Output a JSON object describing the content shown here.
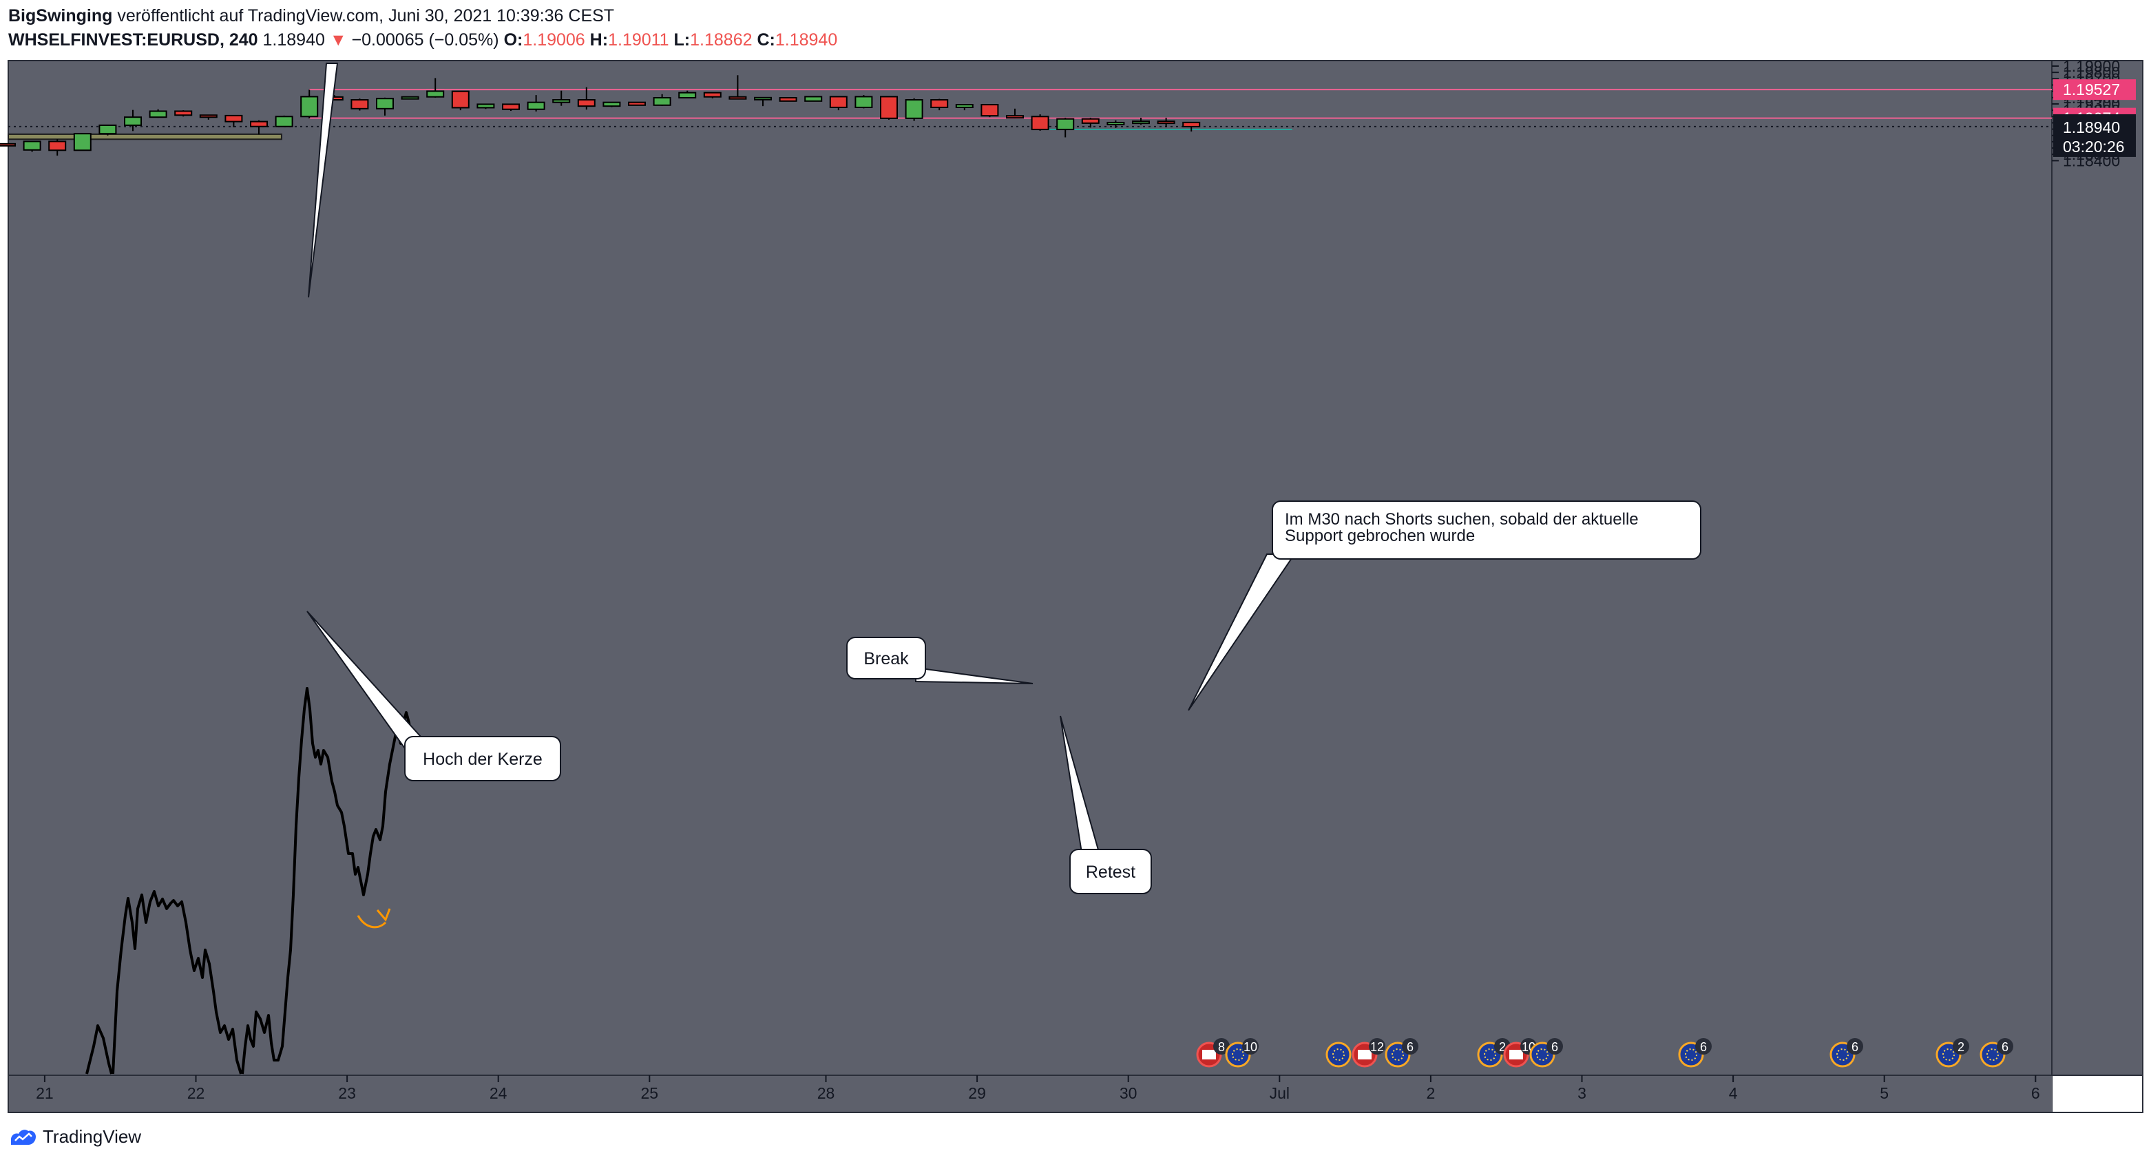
{
  "header": {
    "author": "BigSwinging",
    "published": "veröffentlicht auf TradingView.com, Juni 30, 2021 10:39:36 CEST",
    "symbol": "WHSELFINVEST:EURUSD, 240",
    "last": "1.18940",
    "change_arrow": "▼",
    "change": "−0.00065 (−0.05%)",
    "o_label": "O:",
    "o_value": "1.19006",
    "h_label": "H:",
    "h_value": "1.19011",
    "l_label": "L:",
    "l_value": "1.18862",
    "c_label": "C:",
    "c_value": "1.18940"
  },
  "brand": {
    "name": "TradingView",
    "icon": "tradingview-logo-icon"
  },
  "colors": {
    "background": "#5d606b",
    "bull": "#4caf50",
    "bear": "#e53935",
    "level_line": "#f06292",
    "level_label": "#ec407a",
    "last_label": "#131722",
    "retest_line": "#26a69a",
    "zone_fill": "#8a8a5e"
  },
  "chart_data": {
    "type": "candlestick",
    "timeframe": "240",
    "ylim": [
      1.1833,
      1.1999
    ],
    "y_ticks": [
      "1.18400",
      "1.18500",
      "1.18600",
      "1.18700",
      "1.18800",
      "1.18900",
      "1.19000",
      "1.19100",
      "1.19200",
      "1.19300",
      "1.19400",
      "1.19500",
      "1.19600",
      "1.19700",
      "1.19800",
      "1.19900"
    ],
    "x_ticks": [
      {
        "label": "21",
        "idx": 1.5
      },
      {
        "label": "22",
        "idx": 7.5
      },
      {
        "label": "23",
        "idx": 13.5
      },
      {
        "label": "24",
        "idx": 19.5
      },
      {
        "label": "25",
        "idx": 25.5
      },
      {
        "label": "28",
        "idx": 32.5
      },
      {
        "label": "29",
        "idx": 38.5
      },
      {
        "label": "30",
        "idx": 44.5
      },
      {
        "label": "Jul",
        "idx": 50.5
      },
      {
        "label": "2",
        "idx": 56.5
      },
      {
        "label": "3",
        "idx": 62.5
      },
      {
        "label": "4",
        "idx": 68.5
      },
      {
        "label": "5",
        "idx": 74.5
      },
      {
        "label": "6",
        "idx": 80.5
      }
    ],
    "candles": [
      {
        "o": 1.18668,
        "h": 1.18675,
        "l": 1.1864,
        "c": 1.1864
      },
      {
        "o": 1.1857,
        "h": 1.1871,
        "l": 1.1854,
        "c": 1.18705
      },
      {
        "o": 1.18705,
        "h": 1.1874,
        "l": 1.1848,
        "c": 1.18565
      },
      {
        "o": 1.18565,
        "h": 1.1884,
        "l": 1.1856,
        "c": 1.18828
      },
      {
        "o": 1.18828,
        "h": 1.1896,
        "l": 1.188,
        "c": 1.18962
      },
      {
        "o": 1.18962,
        "h": 1.19205,
        "l": 1.1887,
        "c": 1.1909
      },
      {
        "o": 1.1909,
        "h": 1.19215,
        "l": 1.1908,
        "c": 1.19185
      },
      {
        "o": 1.19185,
        "h": 1.192,
        "l": 1.191,
        "c": 1.19122
      },
      {
        "o": 1.19122,
        "h": 1.19125,
        "l": 1.1905,
        "c": 1.1912
      },
      {
        "o": 1.19115,
        "h": 1.1912,
        "l": 1.1893,
        "c": 1.1902
      },
      {
        "o": 1.1902,
        "h": 1.1904,
        "l": 1.18815,
        "c": 1.18942
      },
      {
        "o": 1.18942,
        "h": 1.19115,
        "l": 1.18942,
        "c": 1.191
      },
      {
        "o": 1.191,
        "h": 1.19525,
        "l": 1.1907,
        "c": 1.19415
      },
      {
        "o": 1.1941,
        "h": 1.1944,
        "l": 1.1936,
        "c": 1.19365
      },
      {
        "o": 1.19365,
        "h": 1.19385,
        "l": 1.19195,
        "c": 1.19225
      },
      {
        "o": 1.19225,
        "h": 1.194,
        "l": 1.19115,
        "c": 1.19385
      },
      {
        "o": 1.19385,
        "h": 1.19405,
        "l": 1.19385,
        "c": 1.19412
      },
      {
        "o": 1.19412,
        "h": 1.1971,
        "l": 1.194,
        "c": 1.19502
      },
      {
        "o": 1.195,
        "h": 1.195,
        "l": 1.192,
        "c": 1.1924
      },
      {
        "o": 1.1924,
        "h": 1.193,
        "l": 1.1922,
        "c": 1.19295
      },
      {
        "o": 1.19295,
        "h": 1.193,
        "l": 1.1919,
        "c": 1.19215
      },
      {
        "o": 1.19215,
        "h": 1.1944,
        "l": 1.1918,
        "c": 1.19325
      },
      {
        "o": 1.19325,
        "h": 1.1951,
        "l": 1.1927,
        "c": 1.19365
      },
      {
        "o": 1.19365,
        "h": 1.19565,
        "l": 1.1921,
        "c": 1.19265
      },
      {
        "o": 1.19265,
        "h": 1.1932,
        "l": 1.1925,
        "c": 1.19325
      },
      {
        "o": 1.19325,
        "h": 1.1933,
        "l": 1.1928,
        "c": 1.1928
      },
      {
        "o": 1.1928,
        "h": 1.19455,
        "l": 1.1927,
        "c": 1.19398
      },
      {
        "o": 1.19398,
        "h": 1.1951,
        "l": 1.19398,
        "c": 1.19478
      },
      {
        "o": 1.19478,
        "h": 1.1948,
        "l": 1.1939,
        "c": 1.19412
      },
      {
        "o": 1.19412,
        "h": 1.19755,
        "l": 1.1939,
        "c": 1.19395
      },
      {
        "o": 1.19395,
        "h": 1.19405,
        "l": 1.19265,
        "c": 1.194
      },
      {
        "o": 1.19398,
        "h": 1.194,
        "l": 1.1934,
        "c": 1.19345
      },
      {
        "o": 1.19345,
        "h": 1.19415,
        "l": 1.19345,
        "c": 1.19415
      },
      {
        "o": 1.19415,
        "h": 1.1942,
        "l": 1.192,
        "c": 1.19245
      },
      {
        "o": 1.19245,
        "h": 1.1944,
        "l": 1.1923,
        "c": 1.19415
      },
      {
        "o": 1.19415,
        "h": 1.19425,
        "l": 1.1905,
        "c": 1.19072
      },
      {
        "o": 1.19072,
        "h": 1.1939,
        "l": 1.1903,
        "c": 1.19365
      },
      {
        "o": 1.19365,
        "h": 1.1938,
        "l": 1.192,
        "c": 1.19245
      },
      {
        "o": 1.19245,
        "h": 1.19295,
        "l": 1.192,
        "c": 1.19288
      },
      {
        "o": 1.19288,
        "h": 1.19295,
        "l": 1.1909,
        "c": 1.19112
      },
      {
        "o": 1.19112,
        "h": 1.19225,
        "l": 1.1907,
        "c": 1.191
      },
      {
        "o": 1.191,
        "h": 1.19135,
        "l": 1.18875,
        "c": 1.18895
      },
      {
        "o": 1.18895,
        "h": 1.1908,
        "l": 1.1877,
        "c": 1.19062
      },
      {
        "o": 1.19062,
        "h": 1.1908,
        "l": 1.18925,
        "c": 1.18995
      },
      {
        "o": 1.18995,
        "h": 1.1904,
        "l": 1.1892,
        "c": 1.19005
      },
      {
        "o": 1.19,
        "h": 1.1908,
        "l": 1.1897,
        "c": 1.19025
      },
      {
        "o": 1.19025,
        "h": 1.1908,
        "l": 1.1894,
        "c": 1.19005
      },
      {
        "o": 1.19006,
        "h": 1.19011,
        "l": 1.18862,
        "c": 1.1894
      }
    ],
    "levels": [
      {
        "price": 1.19527,
        "label": "1.19527"
      },
      {
        "price": 1.19074,
        "label": "1.19074"
      }
    ],
    "last_price": {
      "price": 1.1894,
      "label": "1.18940",
      "countdown": "03:20:26"
    },
    "retest_level": {
      "price": 1.18895
    },
    "zone": {
      "top": 1.1882,
      "bottom": 1.1874
    },
    "callouts": [
      {
        "text": "Hoch der Kerze"
      },
      {
        "text": "Break"
      },
      {
        "text": "Retest"
      },
      {
        "text": "Im M30 nach Shorts suchen, sobald der aktuelle Support gebrochen wurde"
      }
    ],
    "events": [
      {
        "count": "8",
        "flag": "US"
      },
      {
        "count": "10",
        "flag": "EU"
      },
      {
        "count": "",
        "flag": "EU"
      },
      {
        "count": "12",
        "flag": "US"
      },
      {
        "count": "6",
        "flag": "EU"
      },
      {
        "count": "2",
        "flag": "EU"
      },
      {
        "count": "10",
        "flag": "US"
      },
      {
        "count": "6",
        "flag": "EU"
      },
      {
        "count": "6",
        "flag": "EU"
      },
      {
        "count": "6",
        "flag": "EU"
      },
      {
        "count": "2",
        "flag": "EU"
      },
      {
        "count": "6",
        "flag": "EU"
      }
    ]
  }
}
